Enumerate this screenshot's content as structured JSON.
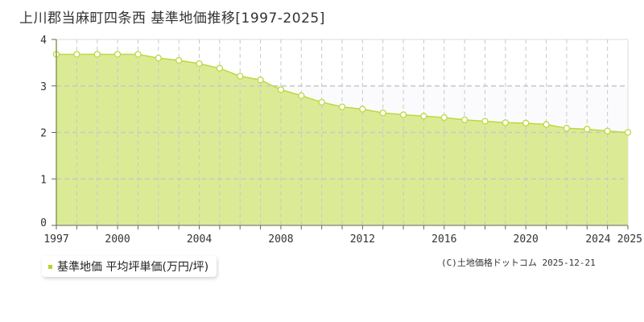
{
  "title": "上川郡当麻町四条西 基準地価推移[1997-2025]",
  "legend_label": "基準地価 平均坪単価(万円/坪)",
  "credit": "(C)土地価格ドットコム 2025-12-21",
  "colors": {
    "fill": "#dbeb95",
    "line": "#bcd93f",
    "grid": "#c8c8c8"
  },
  "chart_data": {
    "type": "area",
    "title": "上川郡当麻町四条西 基準地価推移[1997-2025]",
    "xlabel": "",
    "ylabel": "",
    "x": [
      1997,
      1998,
      1999,
      2000,
      2001,
      2002,
      2003,
      2004,
      2005,
      2006,
      2007,
      2008,
      2009,
      2010,
      2011,
      2012,
      2013,
      2014,
      2015,
      2016,
      2017,
      2018,
      2019,
      2020,
      2021,
      2022,
      2023,
      2024,
      2025
    ],
    "series": [
      {
        "name": "基準地価 平均坪単価(万円/坪)",
        "values": [
          3.68,
          3.68,
          3.68,
          3.68,
          3.68,
          3.6,
          3.55,
          3.48,
          3.38,
          3.21,
          3.13,
          2.92,
          2.79,
          2.65,
          2.55,
          2.5,
          2.42,
          2.38,
          2.35,
          2.32,
          2.27,
          2.24,
          2.21,
          2.2,
          2.17,
          2.09,
          2.07,
          2.03,
          2.0
        ]
      }
    ],
    "xlim": [
      1997,
      2025
    ],
    "ylim": [
      0,
      4
    ],
    "x_tick_labels": [
      "1997",
      "2000",
      "2004",
      "2008",
      "2012",
      "2016",
      "2020",
      "2024",
      "2025"
    ],
    "y_tick_labels": [
      "0",
      "1",
      "2",
      "3",
      "4"
    ],
    "grid": true,
    "legend_position": "bottom-left"
  }
}
